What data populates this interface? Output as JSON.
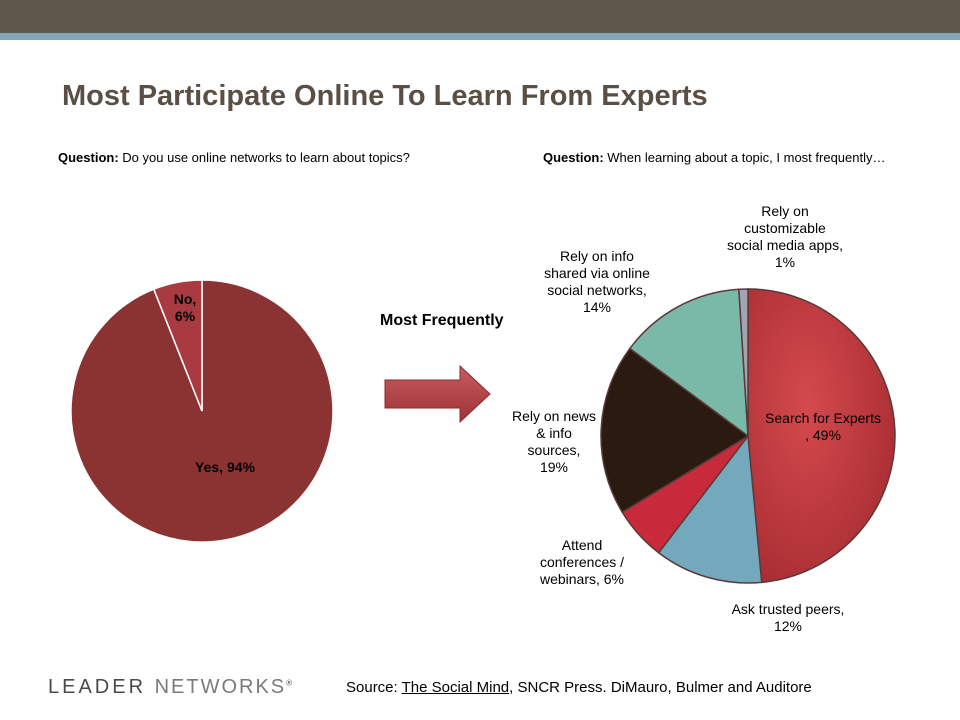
{
  "header": {
    "title": "Most Participate Online To Learn From Experts"
  },
  "left_question": {
    "prefix": "Question:",
    "text": " Do you use online networks to learn about topics?"
  },
  "right_question": {
    "prefix": "Question:",
    "text": " When learning about a topic, I most frequently…"
  },
  "arrow_label": "Most Frequently",
  "colors": {
    "topbar": "#5f574c",
    "stripe": "#7fa8b8",
    "left_pie": "#8b3232",
    "arrow": "#b5464a"
  },
  "chart_data": [
    {
      "type": "pie",
      "title": "",
      "slices": [
        {
          "label": "No",
          "value": 6,
          "label_lines": [
            "No,",
            "6%"
          ],
          "color": "#a83a40"
        },
        {
          "label": "Yes",
          "value": 94,
          "label_lines": [
            "Yes, 94%"
          ],
          "color": "#8b3232"
        }
      ]
    },
    {
      "type": "pie",
      "title": "",
      "slices": [
        {
          "label": "Search for Experts",
          "value": 49,
          "label_lines": [
            "Search for Experts",
            ", 49%"
          ],
          "color": "#c93a3e"
        },
        {
          "label": "Ask trusted peers",
          "value": 12,
          "label_lines": [
            "Ask trusted peers,",
            "12%"
          ],
          "color": "#74a9bd"
        },
        {
          "label": "Attend conferences / webinars",
          "value": 6,
          "label_lines": [
            "Attend",
            "conferences /",
            "webinars, 6%"
          ],
          "color": "#c82a3c"
        },
        {
          "label": "Rely on news & info sources",
          "value": 19,
          "label_lines": [
            "Rely on news",
            "& info",
            "sources,",
            "19%"
          ],
          "color": "#2b1a10"
        },
        {
          "label": "Rely on info shared via online social networks",
          "value": 14,
          "label_lines": [
            "Rely on info",
            "shared via online",
            "social networks,",
            "14%"
          ],
          "color": "#7ab8a8"
        },
        {
          "label": "Rely on customizable social media apps",
          "value": 1,
          "label_lines": [
            "Rely on",
            "customizable",
            "social media apps,",
            "1%"
          ],
          "color": "#a5a3b3"
        }
      ]
    }
  ],
  "footer": {
    "logo_main": "LEADER",
    "logo_sub": "NETWORKS",
    "logo_mark": "®",
    "source_prefix": "Source: ",
    "source_title": "The Social Mind",
    "source_rest": ", SNCR Press.  DiMauro, Bulmer and Auditore"
  }
}
